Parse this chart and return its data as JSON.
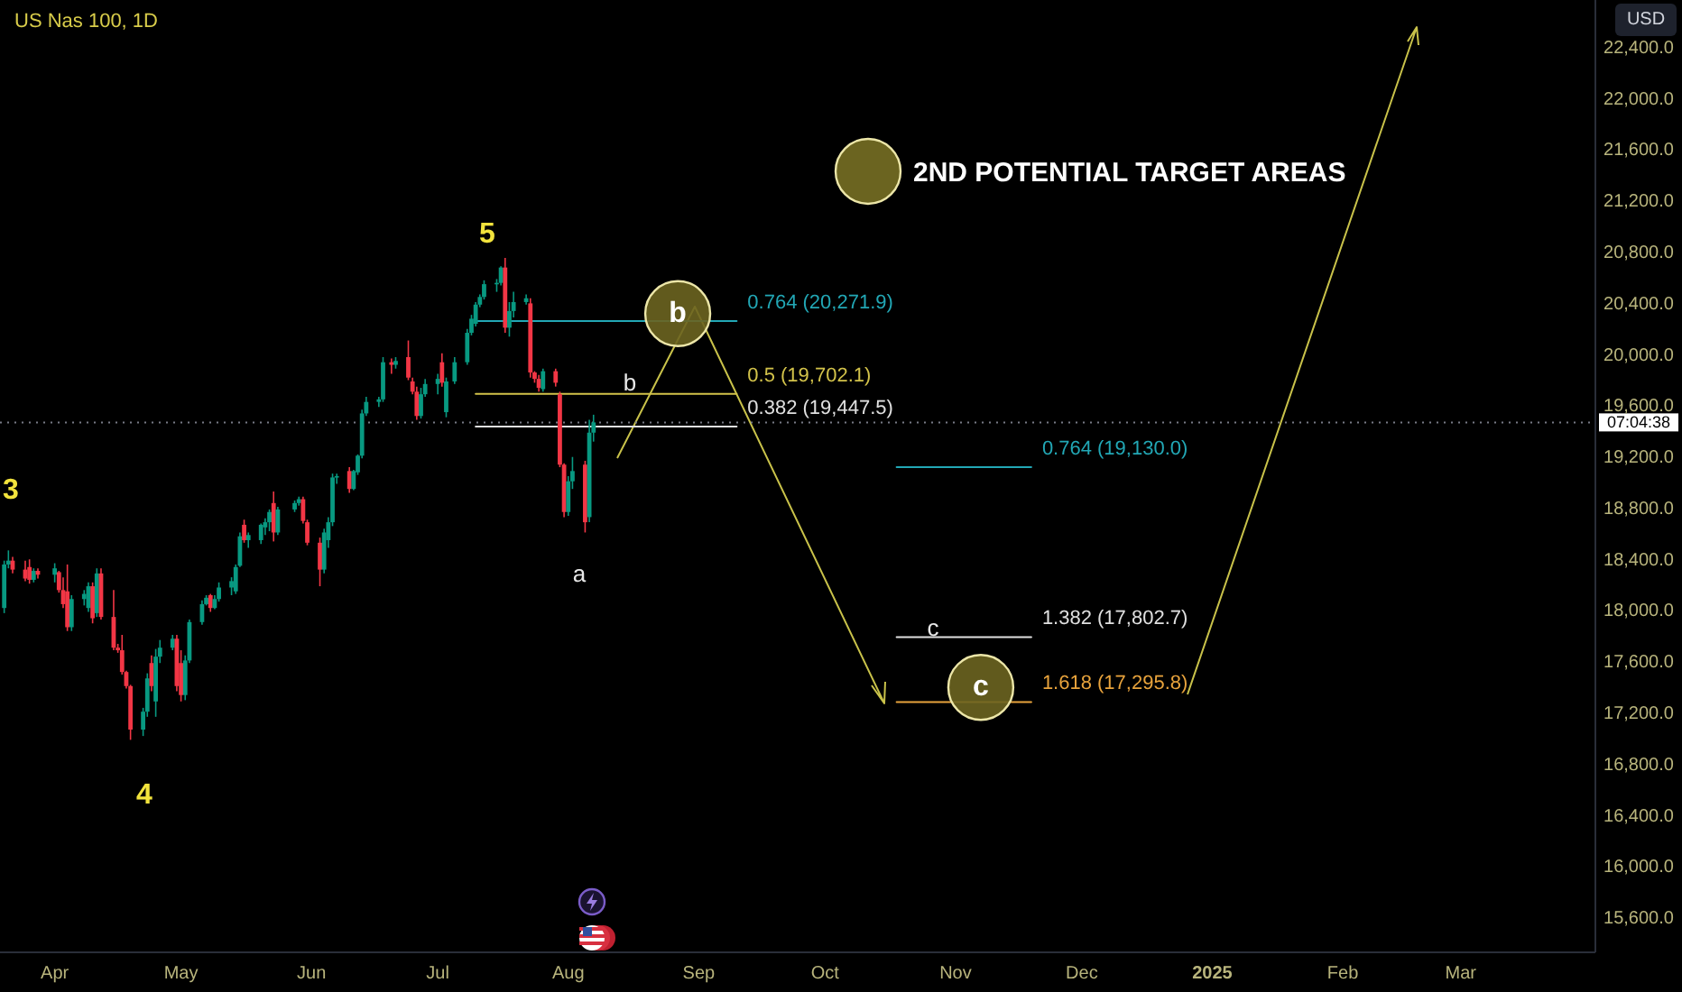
{
  "chart_data": {
    "type": "candlestick",
    "title": "US Nas 100, 1D",
    "x": [
      "2024-03-20",
      "2024-03-21",
      "2024-03-22",
      "2024-03-25",
      "2024-03-26",
      "2024-03-27",
      "2024-03-28",
      "2024-04-01",
      "2024-04-02",
      "2024-04-03",
      "2024-04-04",
      "2024-04-05",
      "2024-04-08",
      "2024-04-09",
      "2024-04-10",
      "2024-04-11",
      "2024-04-12",
      "2024-04-15",
      "2024-04-16",
      "2024-04-17",
      "2024-04-18",
      "2024-04-19",
      "2024-04-22",
      "2024-04-23",
      "2024-04-24",
      "2024-04-25",
      "2024-04-26",
      "2024-04-29",
      "2024-04-30",
      "2024-05-01",
      "2024-05-02",
      "2024-05-03",
      "2024-05-06",
      "2024-05-07",
      "2024-05-08",
      "2024-05-09",
      "2024-05-10",
      "2024-05-13",
      "2024-05-14",
      "2024-05-15",
      "2024-05-16",
      "2024-05-17",
      "2024-05-20",
      "2024-05-21",
      "2024-05-22",
      "2024-05-23",
      "2024-05-24",
      "2024-05-28",
      "2024-05-29",
      "2024-05-30",
      "2024-05-31",
      "2024-06-03",
      "2024-06-04",
      "2024-06-05",
      "2024-06-06",
      "2024-06-07",
      "2024-06-10",
      "2024-06-11",
      "2024-06-12",
      "2024-06-13",
      "2024-06-14",
      "2024-06-17",
      "2024-06-18",
      "2024-06-20",
      "2024-06-21",
      "2024-06-24",
      "2024-06-25",
      "2024-06-26",
      "2024-06-27",
      "2024-06-28",
      "2024-07-01",
      "2024-07-02",
      "2024-07-03",
      "2024-07-05",
      "2024-07-08",
      "2024-07-09",
      "2024-07-10",
      "2024-07-11",
      "2024-07-12",
      "2024-07-15",
      "2024-07-16",
      "2024-07-17",
      "2024-07-18",
      "2024-07-19",
      "2024-07-22",
      "2024-07-23",
      "2024-07-24",
      "2024-07-25",
      "2024-07-26",
      "2024-07-29",
      "2024-07-30",
      "2024-07-31",
      "2024-08-01",
      "2024-08-02",
      "2024-08-05",
      "2024-08-06",
      "2024-08-07"
    ],
    "ohlc": [
      [
        18030,
        18400,
        17990,
        18370
      ],
      [
        18370,
        18480,
        18340,
        18400
      ],
      [
        18400,
        18430,
        18300,
        18330
      ],
      [
        18330,
        18400,
        18240,
        18260
      ],
      [
        18350,
        18410,
        18220,
        18250
      ],
      [
        18250,
        18340,
        18230,
        18320
      ],
      [
        18320,
        18340,
        18260,
        18290
      ],
      [
        18290,
        18380,
        18230,
        18340
      ],
      [
        18310,
        18320,
        18150,
        18170
      ],
      [
        18170,
        18270,
        18030,
        18060
      ],
      [
        18160,
        18370,
        17850,
        17880
      ],
      [
        17880,
        18130,
        17850,
        18100
      ],
      [
        18100,
        18170,
        18050,
        18140
      ],
      [
        18030,
        18230,
        18000,
        18200
      ],
      [
        18200,
        18230,
        17910,
        17950
      ],
      [
        17990,
        18340,
        17960,
        18300
      ],
      [
        18300,
        18340,
        17940,
        17960
      ],
      [
        17960,
        18170,
        17700,
        17720
      ],
      [
        17720,
        17750,
        17680,
        17700
      ],
      [
        17700,
        17820,
        17510,
        17530
      ],
      [
        17530,
        17540,
        17400,
        17420
      ],
      [
        17420,
        17430,
        17000,
        17080
      ],
      [
        17080,
        17250,
        17030,
        17220
      ],
      [
        17220,
        17520,
        17180,
        17480
      ],
      [
        17600,
        17660,
        17380,
        17420
      ],
      [
        17300,
        17710,
        17180,
        17650
      ],
      [
        17650,
        17780,
        17600,
        17720
      ],
      [
        17720,
        17820,
        17700,
        17790
      ],
      [
        17790,
        17820,
        17380,
        17420
      ],
      [
        17600,
        17700,
        17300,
        17350
      ],
      [
        17350,
        17660,
        17310,
        17620
      ],
      [
        17620,
        17940,
        17600,
        17920
      ],
      [
        17920,
        18090,
        17900,
        18060
      ],
      [
        18060,
        18130,
        18050,
        18110
      ],
      [
        18130,
        18140,
        18000,
        18030
      ],
      [
        18030,
        18130,
        18020,
        18100
      ],
      [
        18100,
        18230,
        18080,
        18190
      ],
      [
        18190,
        18270,
        18130,
        18240
      ],
      [
        18160,
        18370,
        18140,
        18350
      ],
      [
        18360,
        18620,
        18350,
        18590
      ],
      [
        18680,
        18720,
        18540,
        18560
      ],
      [
        18560,
        18620,
        18500,
        18600
      ],
      [
        18560,
        18690,
        18530,
        18680
      ],
      [
        18660,
        18730,
        18600,
        18700
      ],
      [
        18700,
        18800,
        18630,
        18780
      ],
      [
        18850,
        18940,
        18550,
        18620
      ],
      [
        18620,
        18820,
        18600,
        18800
      ],
      [
        18800,
        18870,
        18780,
        18850
      ],
      [
        18850,
        18900,
        18830,
        18880
      ],
      [
        18880,
        18900,
        18690,
        18710
      ],
      [
        18700,
        18720,
        18520,
        18540
      ],
      [
        18540,
        18580,
        18200,
        18330
      ],
      [
        18330,
        18650,
        18300,
        18620
      ],
      [
        18560,
        18740,
        18500,
        18700
      ],
      [
        18700,
        19080,
        18670,
        19050
      ],
      [
        19050,
        19080,
        19000,
        19060
      ],
      [
        19100,
        19130,
        18930,
        18960
      ],
      [
        18960,
        19110,
        18950,
        19100
      ],
      [
        19090,
        19230,
        19070,
        19220
      ],
      [
        19220,
        19580,
        19200,
        19550
      ],
      [
        19550,
        19680,
        19530,
        19640
      ],
      [
        19640,
        19680,
        19600,
        19660
      ],
      [
        19660,
        19990,
        19640,
        19950
      ],
      [
        19950,
        19980,
        19860,
        19930
      ],
      [
        19930,
        19990,
        19900,
        19960
      ],
      [
        19990,
        20120,
        19810,
        19830
      ],
      [
        19800,
        19830,
        19700,
        19720
      ],
      [
        19720,
        19760,
        19500,
        19530
      ],
      [
        19530,
        19750,
        19510,
        19700
      ],
      [
        19700,
        19820,
        19680,
        19780
      ],
      [
        19780,
        19860,
        19700,
        19820
      ],
      [
        19950,
        20020,
        19760,
        19790
      ],
      [
        19560,
        19830,
        19520,
        19800
      ],
      [
        19800,
        19990,
        19780,
        19950
      ],
      [
        19950,
        20210,
        19930,
        20180
      ],
      [
        20180,
        20320,
        20160,
        20290
      ],
      [
        20250,
        20420,
        20230,
        20400
      ],
      [
        20400,
        20480,
        20380,
        20460
      ],
      [
        20460,
        20590,
        20440,
        20560
      ],
      [
        20560,
        20600,
        20500,
        20570
      ],
      [
        20570,
        20700,
        20550,
        20690
      ],
      [
        20690,
        20765,
        20180,
        20220
      ],
      [
        20220,
        20420,
        20150,
        20350
      ],
      [
        20350,
        20500,
        20300,
        20420
      ],
      [
        20420,
        20480,
        20400,
        20450
      ],
      [
        20410,
        20450,
        19830,
        19870
      ],
      [
        19870,
        19880,
        19790,
        19820
      ],
      [
        19820,
        19850,
        19720,
        19750
      ],
      [
        19740,
        19900,
        19720,
        19880
      ],
      [
        19880,
        19900,
        19760,
        19790
      ],
      [
        19700,
        19720,
        19130,
        19150
      ],
      [
        19150,
        19160,
        18740,
        18780
      ],
      [
        18780,
        19060,
        18750,
        19020
      ],
      [
        19020,
        19210,
        18960,
        19100
      ],
      [
        19150,
        19180,
        18620,
        18700
      ],
      [
        18740,
        19500,
        18700,
        19400
      ],
      [
        19400,
        19540,
        19330,
        19480
      ]
    ],
    "colors": [
      "#089981",
      "#089981",
      "#f23645",
      "#f23645",
      "#f23645",
      "#089981",
      "#f23645",
      "#089981",
      "#f23645",
      "#f23645",
      "#f23645",
      "#089981",
      "#089981",
      "#089981",
      "#f23645",
      "#089981",
      "#f23645",
      "#f23645",
      "#f23645",
      "#f23645",
      "#f23645",
      "#f23645",
      "#089981",
      "#089981",
      "#f23645",
      "#089981",
      "#089981",
      "#089981",
      "#f23645",
      "#f23645",
      "#089981",
      "#089981",
      "#089981",
      "#089981",
      "#f23645",
      "#089981",
      "#089981",
      "#089981",
      "#089981",
      "#089981",
      "#f23645",
      "#089981",
      "#089981",
      "#089981",
      "#089981",
      "#f23645",
      "#089981",
      "#089981",
      "#089981",
      "#f23645",
      "#f23645",
      "#f23645",
      "#089981",
      "#089981",
      "#089981",
      "#089981",
      "#f23645",
      "#089981",
      "#089981",
      "#089981",
      "#089981",
      "#089981",
      "#089981",
      "#f23645",
      "#089981",
      "#f23645",
      "#f23645",
      "#f23645",
      "#089981",
      "#089981",
      "#089981",
      "#f23645",
      "#089981",
      "#089981",
      "#089981",
      "#089981",
      "#089981",
      "#089981",
      "#089981",
      "#089981",
      "#089981",
      "#f23645",
      "#089981",
      "#089981",
      "#089981",
      "#f23645",
      "#f23645",
      "#f23645",
      "#089981",
      "#f23645",
      "#f23645",
      "#f23645",
      "#089981",
      "#089981",
      "#f23645",
      "#089981",
      "#089981"
    ],
    "series": [
      {
        "type": "line",
        "name": "0.764 (20,271.9)",
        "color": "#22a7b5",
        "x": [
          "2024-07-10",
          "2024-09-10"
        ],
        "values": [
          20271.9,
          20271.9
        ]
      },
      {
        "type": "line",
        "name": "0.5 (19,702.1)",
        "color": "#d2c24a",
        "x": [
          "2024-07-10",
          "2024-09-10"
        ],
        "values": [
          19702.1,
          19702.1
        ]
      },
      {
        "type": "line",
        "name": "0.382 (19,447.5)",
        "color": "#e0e0e0",
        "x": [
          "2024-07-10",
          "2024-09-10"
        ],
        "values": [
          19447.5,
          19447.5
        ]
      },
      {
        "type": "line",
        "name": "0.764 (19,130.0)",
        "color": "#22a7b5",
        "x": [
          "2024-10-18",
          "2024-11-19"
        ],
        "values": [
          19130.0,
          19130.0
        ]
      },
      {
        "type": "line",
        "name": "1.382 (17,802.7)",
        "color": "#e0e0e0",
        "x": [
          "2024-10-18",
          "2024-11-19"
        ],
        "values": [
          17802.7,
          17802.7
        ]
      },
      {
        "type": "line",
        "name": "1.618 (17,295.8)",
        "color": "#e8a33c",
        "x": [
          "2024-10-18",
          "2024-11-19"
        ],
        "values": [
          17295.8,
          17295.8
        ]
      }
    ],
    "xlim": [
      "2024-03-19",
      "2025-04-02"
    ],
    "xticks": [
      {
        "value": "2024-04-01",
        "label": "Apr"
      },
      {
        "value": "2024-05-01",
        "label": "May"
      },
      {
        "value": "2024-06-01",
        "label": "Jun"
      },
      {
        "value": "2024-07-01",
        "label": "Jul"
      },
      {
        "value": "2024-08-01",
        "label": "Aug"
      },
      {
        "value": "2024-09-01",
        "label": "Sep"
      },
      {
        "value": "2024-10-01",
        "label": "Oct"
      },
      {
        "value": "2024-11-01",
        "label": "Nov"
      },
      {
        "value": "2024-12-01",
        "label": "Dec"
      },
      {
        "value": "2025-01-01",
        "label": "2025"
      },
      {
        "value": "2025-02-01",
        "label": "Feb"
      },
      {
        "value": "2025-03-01",
        "label": "Mar"
      }
    ],
    "ylim": [
      15340,
      22780
    ],
    "yticks": [
      {
        "value": 15600,
        "label": "15,600.0"
      },
      {
        "value": 16000,
        "label": "16,000.0"
      },
      {
        "value": 16400,
        "label": "16,400.0"
      },
      {
        "value": 16800,
        "label": "16,800.0"
      },
      {
        "value": 17200,
        "label": "17,200.0"
      },
      {
        "value": 17600,
        "label": "17,600.0"
      },
      {
        "value": 18000,
        "label": "18,000.0"
      },
      {
        "value": 18400,
        "label": "18,400.0"
      },
      {
        "value": 18800,
        "label": "18,800.0"
      },
      {
        "value": 19200,
        "label": "19,200.0"
      },
      {
        "value": 19600,
        "label": "19,600.0"
      },
      {
        "value": 20000,
        "label": "20,000.0"
      },
      {
        "value": 20400,
        "label": "20,400.0"
      },
      {
        "value": 20800,
        "label": "20,800.0"
      },
      {
        "value": 21200,
        "label": "21,200.0"
      },
      {
        "value": 21600,
        "label": "21,600.0"
      },
      {
        "value": 22000,
        "label": "22,000.0"
      },
      {
        "value": 22400,
        "label": "22,400.0"
      }
    ],
    "ref_lines": [
      {
        "axis": "y",
        "value": 19480,
        "color": "#787b86",
        "line_style": "dotted"
      }
    ],
    "annotations": [
      "3",
      "4",
      "5",
      "a",
      "b",
      "c",
      {
        "text": "b",
        "x": "2024-08-27",
        "y": 20330
      },
      {
        "text": "c",
        "x": "2024-11-07",
        "y": 17410
      },
      "2ND POTENTIAL TARGET AREAS",
      "USD",
      "07:04:38"
    ]
  }
}
